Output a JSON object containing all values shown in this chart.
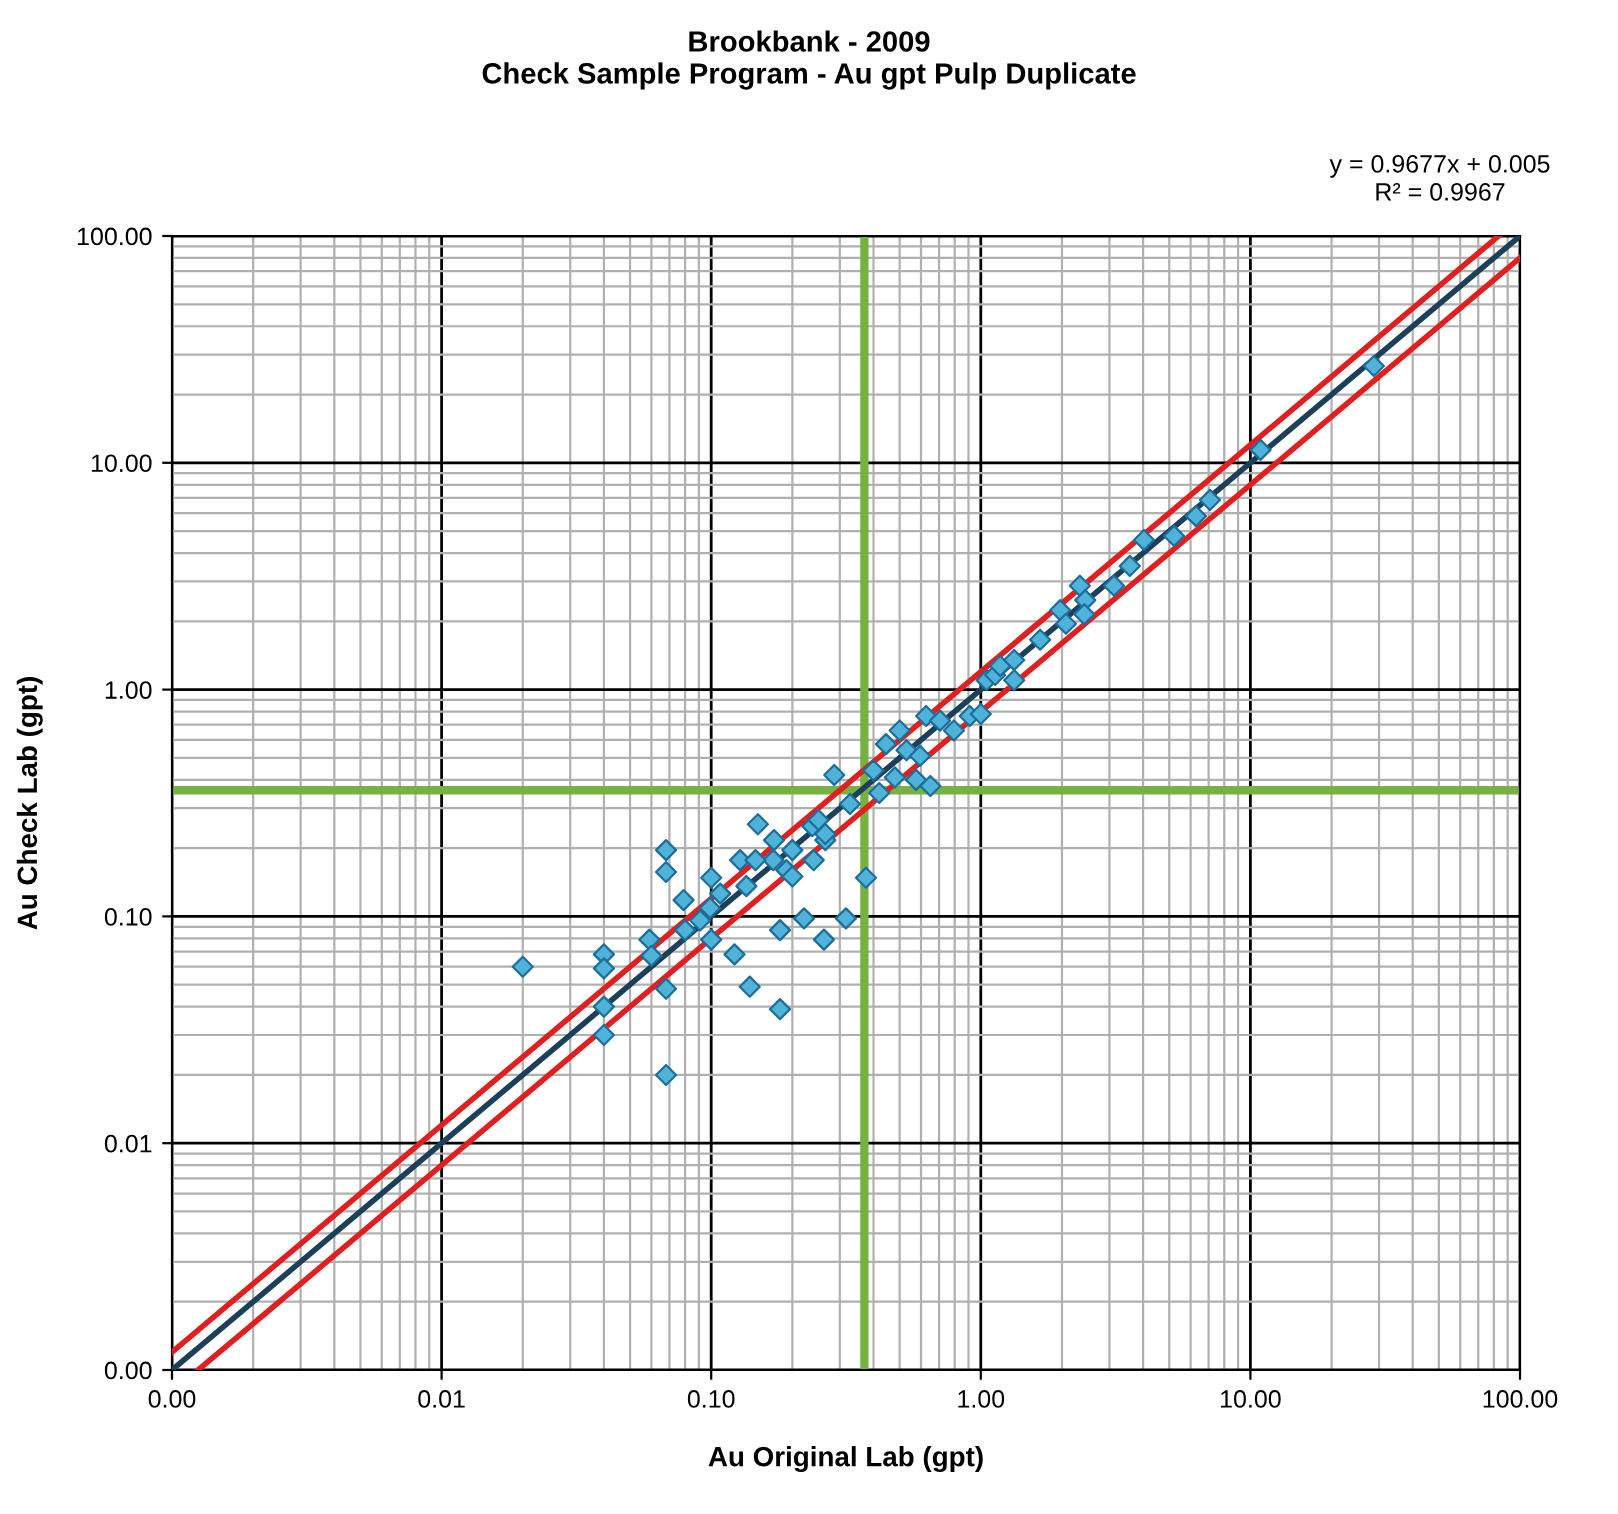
{
  "chart_data": {
    "type": "scatter",
    "title": "Brookbank - 2009",
    "subtitle": "Check Sample Program - Au gpt Pulp Duplicate",
    "xlabel": "Au Original Lab (gpt)",
    "ylabel": "Au Check Lab (gpt)",
    "annotations": [
      "y = 0.9677x + 0.005",
      "R² = 0.9967"
    ],
    "log": "xy",
    "xlim": [
      0.001,
      100
    ],
    "ylim": [
      0.001,
      100
    ],
    "xticks": [
      {
        "value": 0.001,
        "label": "0.00"
      },
      {
        "value": 0.01,
        "label": "0.01"
      },
      {
        "value": 0.1,
        "label": "0.10"
      },
      {
        "value": 1,
        "label": "1.00"
      },
      {
        "value": 10,
        "label": "10.00"
      },
      {
        "value": 100,
        "label": "100.00"
      }
    ],
    "yticks": [
      {
        "value": 0.001,
        "label": "0.00"
      },
      {
        "value": 0.01,
        "label": "0.01"
      },
      {
        "value": 0.1,
        "label": "0.10"
      },
      {
        "value": 1,
        "label": "1.00"
      },
      {
        "value": 10,
        "label": "10.00"
      },
      {
        "value": 100,
        "label": "100.00"
      }
    ],
    "grid": true,
    "legend": false,
    "ref_lines": [
      {
        "axis": "x",
        "value": 0.37,
        "color": "#77b043"
      },
      {
        "axis": "y",
        "value": 0.36,
        "color": "#77b043"
      }
    ],
    "series": [
      {
        "type": "line",
        "color": "#e02020",
        "marker": "none",
        "line_style": "solid",
        "x": [
          0.001,
          83.3
        ],
        "values": [
          0.0012,
          100
        ]
      },
      {
        "type": "line",
        "color": "#e02020",
        "marker": "none",
        "line_style": "solid",
        "x": [
          0.00125,
          100
        ],
        "values": [
          0.001,
          80
        ]
      },
      {
        "type": "line",
        "color": "#1c3f5a",
        "marker": "none",
        "line_style": "solid",
        "x": [
          0.001,
          100
        ],
        "values": [
          0.001,
          100
        ]
      },
      {
        "color": "#4fb3d9",
        "marker": "diamond",
        "x": [
          0.02,
          0.04,
          0.04,
          0.04,
          0.04,
          0.059,
          0.06,
          0.068,
          0.068,
          0.068,
          0.068,
          0.079,
          0.08,
          0.091,
          0.1,
          0.1,
          0.099,
          0.122,
          0.128,
          0.139,
          0.149,
          0.171,
          0.17,
          0.18,
          0.18,
          0.19,
          0.2,
          0.221,
          0.237,
          0.262,
          0.265,
          0.316,
          0.375,
          0.286,
          0.146,
          0.135,
          0.108,
          0.2,
          0.24,
          0.265,
          0.25,
          0.327,
          0.4,
          0.445,
          0.5,
          0.53,
          0.595,
          0.627,
          0.706,
          0.575,
          0.48,
          0.795,
          0.91,
          1.0,
          1.05,
          1.13,
          1.18,
          1.33,
          1.33,
          1.66,
          1.97,
          2.07,
          2.33,
          2.44,
          2.42,
          3.12,
          3.57,
          4.03,
          5.21,
          6.28,
          0.65,
          0.42,
          28.7,
          10.9,
          7.08
        ],
        "values": [
          0.06,
          0.068,
          0.059,
          0.04,
          0.03,
          0.079,
          0.067,
          0.048,
          0.02,
          0.196,
          0.157,
          0.118,
          0.087,
          0.096,
          0.148,
          0.079,
          0.109,
          0.068,
          0.177,
          0.049,
          0.255,
          0.217,
          0.177,
          0.087,
          0.039,
          0.16,
          0.15,
          0.098,
          0.25,
          0.079,
          0.217,
          0.098,
          0.148,
          0.42,
          0.177,
          0.136,
          0.126,
          0.196,
          0.177,
          0.231,
          0.266,
          0.313,
          0.44,
          0.575,
          0.66,
          0.54,
          0.51,
          0.765,
          0.73,
          0.4,
          0.41,
          0.66,
          0.765,
          0.78,
          1.1,
          1.16,
          1.27,
          1.35,
          1.1,
          1.66,
          2.24,
          1.95,
          2.87,
          2.48,
          2.15,
          2.87,
          3.51,
          4.57,
          4.76,
          5.82,
          0.376,
          0.35,
          26.7,
          11.4,
          6.86
        ]
      }
    ]
  }
}
